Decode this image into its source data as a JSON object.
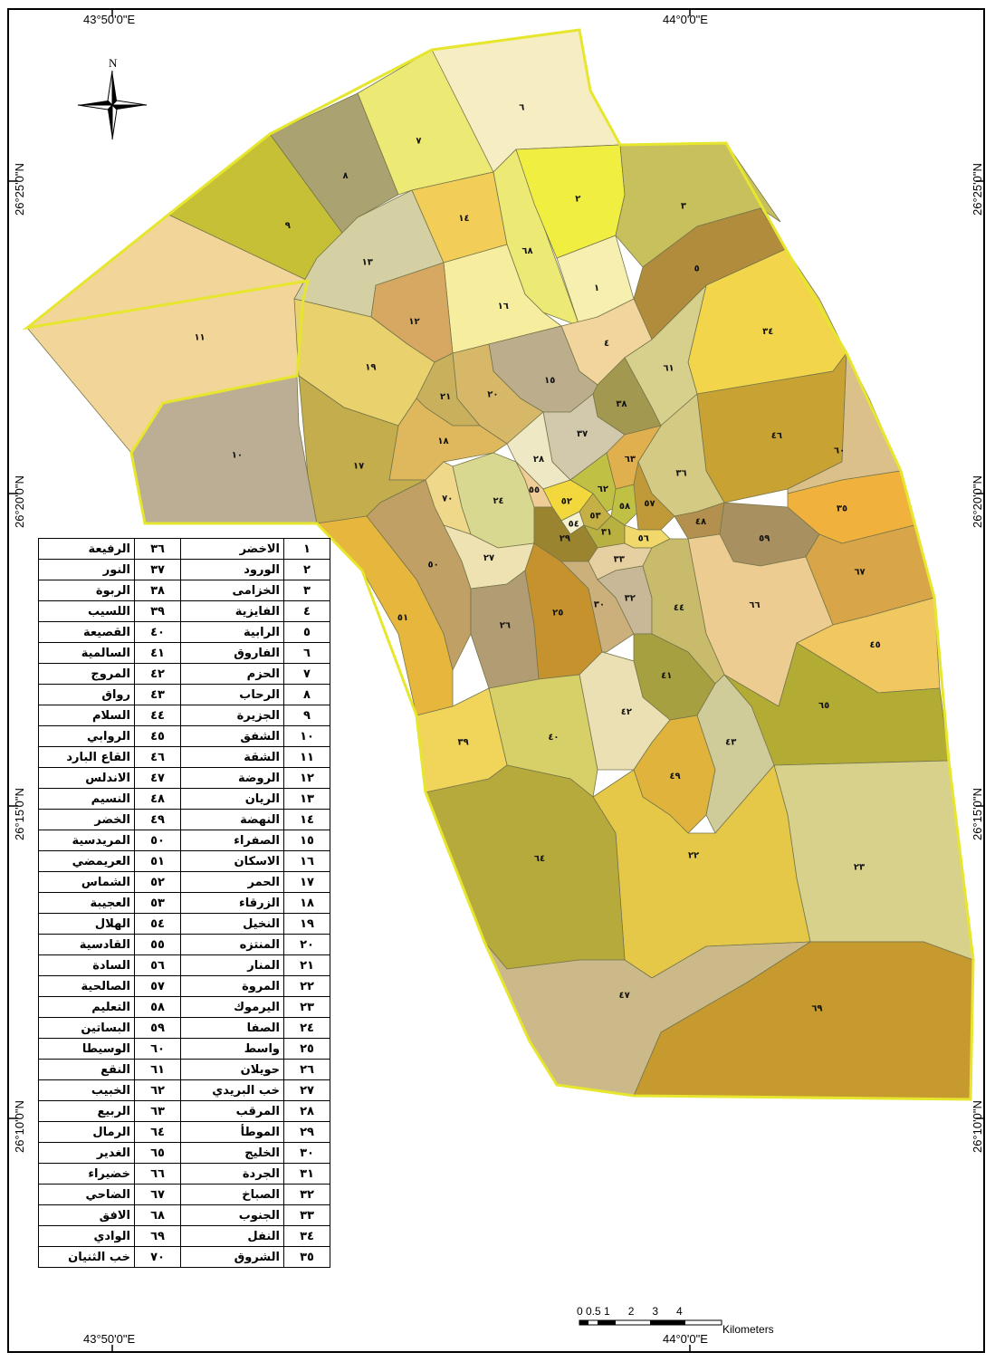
{
  "coords": {
    "top_left": "43°50'0\"E",
    "top_right": "44°0'0\"E",
    "bottom_left": "43°50'0\"E",
    "bottom_right": "44°0'0\"E",
    "lat_25": "26°25'0\"N",
    "lat_20": "26°20'0\"N",
    "lat_15": "26°15'0\"N",
    "lat_10": "26°10'0\"N"
  },
  "north_arrow": {
    "label": "N",
    "icon": "compass-rose-icon"
  },
  "scale_bar": {
    "ticks": "0 0.5 1      2      3      4",
    "units": "Kilometers"
  },
  "colors": {
    "boundary": "#e6e62e",
    "district_edge": "#7a7a50"
  },
  "map_labels": [
    "١",
    "٢",
    "٣",
    "٤",
    "٥",
    "٦",
    "٧",
    "٨",
    "٩",
    "١٠",
    "١١",
    "١٢",
    "١٣",
    "١٤",
    "١٥",
    "١٦",
    "١٧",
    "١٨",
    "١٩",
    "٢٠",
    "٢١",
    "٢٢",
    "٢٣",
    "٢٤",
    "٢٥",
    "٢٦",
    "٢٧",
    "٢٨",
    "٢٩",
    "٣٠",
    "٣١",
    "٣٢",
    "٣٣",
    "٣٤",
    "٣٥",
    "٣٦",
    "٣٧",
    "٣٨",
    "٣٩",
    "٤٠",
    "٤١",
    "٤٢",
    "٤٣",
    "٤٤",
    "٤٥",
    "٤٦",
    "٤٧",
    "٤٨",
    "٤٩",
    "٥٠",
    "٥١",
    "٥٢",
    "٥٣",
    "٥٤",
    "٥٥",
    "٥٦",
    "٥٧",
    "٥٨",
    "٥٩",
    "٦٠",
    "٦١",
    "٦٢",
    "٦٣",
    "٦٤",
    "٦٥",
    "٦٦",
    "٦٧",
    "٦٨",
    "٦٩",
    "٧٠"
  ],
  "legend": [
    {
      "n1": "١",
      "name1": "الاخضر",
      "n2": "٣٦",
      "name2": "الرفيعة"
    },
    {
      "n1": "٢",
      "name1": "الورود",
      "n2": "٣٧",
      "name2": "النور"
    },
    {
      "n1": "٣",
      "name1": "الخزامى",
      "n2": "٣٨",
      "name2": "الربوة"
    },
    {
      "n1": "٤",
      "name1": "الفايزية",
      "n2": "٣٩",
      "name2": "اللسيب"
    },
    {
      "n1": "٥",
      "name1": "الرابية",
      "n2": "٤٠",
      "name2": "القصيعة"
    },
    {
      "n1": "٦",
      "name1": "الفاروق",
      "n2": "٤١",
      "name2": "السالمية"
    },
    {
      "n1": "٧",
      "name1": "الحزم",
      "n2": "٤٢",
      "name2": "المروج"
    },
    {
      "n1": "٨",
      "name1": "الرحاب",
      "n2": "٤٣",
      "name2": "رواق"
    },
    {
      "n1": "٩",
      "name1": "الجزيرة",
      "n2": "٤٤",
      "name2": "السلام"
    },
    {
      "n1": "١٠",
      "name1": "الشفق",
      "n2": "٤٥",
      "name2": "الروابي"
    },
    {
      "n1": "١١",
      "name1": "الشقة",
      "n2": "٤٦",
      "name2": "القاع البارد"
    },
    {
      "n1": "١٢",
      "name1": "الروضة",
      "n2": "٤٧",
      "name2": "الاندلس"
    },
    {
      "n1": "١٣",
      "name1": "الريان",
      "n2": "٤٨",
      "name2": "النسيم"
    },
    {
      "n1": "١٤",
      "name1": "النهضة",
      "n2": "٤٩",
      "name2": "الخضر"
    },
    {
      "n1": "١٥",
      "name1": "الصفراء",
      "n2": "٥٠",
      "name2": "المريدسية"
    },
    {
      "n1": "١٦",
      "name1": "الاسكان",
      "n2": "٥١",
      "name2": "العريمضي"
    },
    {
      "n1": "١٧",
      "name1": "الحمر",
      "n2": "٥٢",
      "name2": "الشماس"
    },
    {
      "n1": "١٨",
      "name1": "الزرقاء",
      "n2": "٥٣",
      "name2": "العجيبة"
    },
    {
      "n1": "١٩",
      "name1": "النخيل",
      "n2": "٥٤",
      "name2": "الهلال"
    },
    {
      "n1": "٢٠",
      "name1": "المنتزه",
      "n2": "٥٥",
      "name2": "القادسية"
    },
    {
      "n1": "٢١",
      "name1": "المنار",
      "n2": "٥٦",
      "name2": "السادة"
    },
    {
      "n1": "٢٢",
      "name1": "المروة",
      "n2": "٥٧",
      "name2": "الصالحية"
    },
    {
      "n1": "٢٣",
      "name1": "اليرموك",
      "n2": "٥٨",
      "name2": "التعليم"
    },
    {
      "n1": "٢٤",
      "name1": "الصفا",
      "n2": "٥٩",
      "name2": "البساتين"
    },
    {
      "n1": "٢٥",
      "name1": "واسط",
      "n2": "٦٠",
      "name2": "الوسيطا"
    },
    {
      "n1": "٢٦",
      "name1": "حويلان",
      "n2": "٦١",
      "name2": "النقع"
    },
    {
      "n1": "٢٧",
      "name1": "خب البريدي",
      "n2": "٦٢",
      "name2": "الخبيب"
    },
    {
      "n1": "٢٨",
      "name1": "المرقب",
      "n2": "٦٣",
      "name2": "الربيع"
    },
    {
      "n1": "٢٩",
      "name1": "الموطأ",
      "n2": "٦٤",
      "name2": "الرمال"
    },
    {
      "n1": "٣٠",
      "name1": "الخليج",
      "n2": "٦٥",
      "name2": "الغدير"
    },
    {
      "n1": "٣١",
      "name1": "الجردة",
      "n2": "٦٦",
      "name2": "خضيراء"
    },
    {
      "n1": "٣٢",
      "name1": "الصباخ",
      "n2": "٦٧",
      "name2": "الضاحي"
    },
    {
      "n1": "٣٣",
      "name1": "الجنوب",
      "n2": "٦٨",
      "name2": "الافق"
    },
    {
      "n1": "٣٤",
      "name1": "النفل",
      "n2": "٦٩",
      "name2": "الوادي"
    },
    {
      "n1": "٣٥",
      "name1": "الشروق",
      "n2": "٧٠",
      "name2": "خب الثنيان"
    }
  ]
}
